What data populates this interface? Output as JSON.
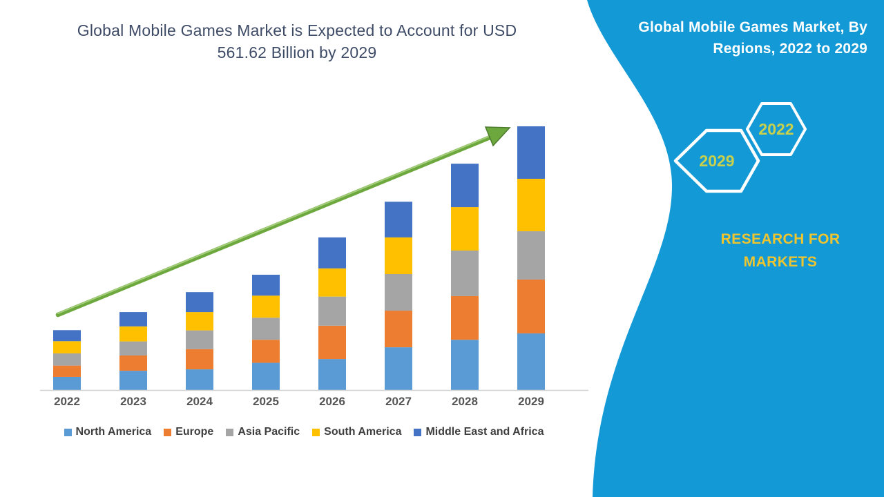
{
  "chart_data": {
    "type": "bar",
    "stacked": true,
    "title": "Global Mobile Games Market is Expected to Account for USD 561.62 Billion by 2029",
    "unit": "USD Billion",
    "categories": [
      "2022",
      "2023",
      "2024",
      "2025",
      "2026",
      "2027",
      "2028",
      "2029"
    ],
    "series": [
      {
        "name": "North America",
        "color": "#5B9BD5",
        "values": [
          28,
          41,
          44,
          58,
          66,
          91,
          107,
          120.5
        ]
      },
      {
        "name": "Europe",
        "color": "#ED7D31",
        "values": [
          24,
          32.5,
          43,
          49,
          71,
          78,
          93,
          114.7
        ]
      },
      {
        "name": "Asia Pacific",
        "color": "#A5A5A5",
        "values": [
          26,
          30,
          40,
          47,
          62,
          78,
          97,
          102.9
        ]
      },
      {
        "name": "South America",
        "color": "#FFC000",
        "values": [
          26,
          32,
          39,
          47,
          60,
          78,
          92.5,
          111.8
        ]
      },
      {
        "name": "Middle East and Africa",
        "color": "#4472C4",
        "values": [
          23.5,
          30.5,
          42.5,
          44.5,
          66,
          76,
          92.5,
          111.72
        ]
      }
    ],
    "totals": [
      127.5,
      166,
      208.5,
      245.5,
      325,
      401,
      482,
      561.62
    ],
    "ylim": [
      0,
      600
    ],
    "gridlines": false,
    "axis_visible": "x-only",
    "legend_position": "bottom",
    "annotations": [
      "upward growth trend arrow from 2022 bar to 2029 bar"
    ]
  },
  "sidebar": {
    "title": "Global Mobile Games Market, By Regions, 2022 to 2029",
    "background_color": "#139AD6",
    "hexagons": [
      {
        "label": "2029"
      },
      {
        "label": "2022"
      }
    ],
    "brand_line1": "RESEARCH FOR",
    "brand_line2": "MARKETS",
    "brand_color": "#EFC52F",
    "hex_label_color": "#C9D04C"
  },
  "colors": {
    "title_text": "#3E4B66",
    "axis_line": "#D0D0D0",
    "axis_label": "#555555",
    "legend_text": "#3F3F3F",
    "arrow_green": "#6CA83E",
    "arrow_edge": "#4C7A2B",
    "arrow_highlight": "#A6CF7C"
  }
}
